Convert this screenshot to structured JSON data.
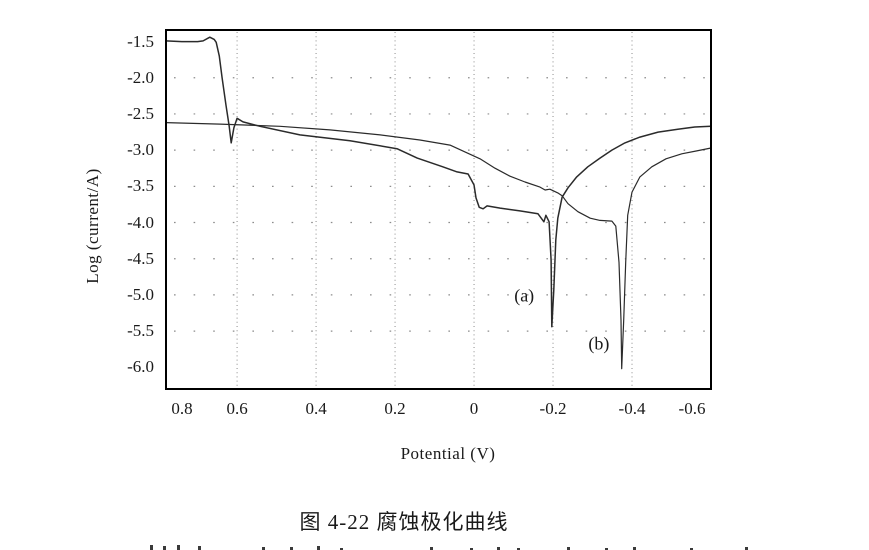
{
  "figure": {
    "caption": "图 4-22  腐蚀极化曲线",
    "cutoff_line_note": "second caption line clipped at bottom edge of screenshot",
    "cutoff_line_marks": [
      [
        150,
        5
      ],
      [
        163,
        4
      ],
      [
        177,
        5
      ],
      [
        198,
        4
      ],
      [
        262,
        3
      ],
      [
        290,
        3
      ],
      [
        317,
        4
      ],
      [
        340,
        2
      ],
      [
        430,
        3
      ],
      [
        470,
        2
      ],
      [
        497,
        3
      ],
      [
        517,
        2
      ],
      [
        567,
        3
      ],
      [
        605,
        2
      ],
      [
        633,
        3
      ],
      [
        690,
        2
      ],
      [
        745,
        3
      ]
    ]
  },
  "chart_data": {
    "type": "line",
    "title": "",
    "xlabel": "Potential (V)",
    "ylabel": "Log (current/A)",
    "x_axis_reversed": true,
    "xlim": [
      0.78,
      -0.6
    ],
    "ylim": [
      -1.34,
      -6.3
    ],
    "x_ticks": [
      0.8,
      0.6,
      0.4,
      0.2,
      0,
      -0.2,
      -0.4,
      -0.6
    ],
    "x_tick_labels": [
      "0.8",
      "0.6",
      "0.4",
      "0.2",
      "0",
      "-0.2",
      "-0.4",
      "-0.6"
    ],
    "y_ticks": [
      -1.5,
      -2.0,
      -2.5,
      -3.0,
      -3.5,
      -4.0,
      -4.5,
      -5.0,
      -5.5,
      -6.0
    ],
    "y_tick_labels": [
      "-1.5",
      "-2.0",
      "-2.5",
      "-3.0",
      "-3.5",
      "-4.0",
      "-4.5",
      "-5.0",
      "-5.5",
      "-6.0"
    ],
    "grid": "dotted",
    "grid_x_values": [
      0.6,
      0.4,
      0.2,
      0,
      -0.2,
      -0.4
    ],
    "grid_y_values": [
      -2.0,
      -2.5,
      -3.0,
      -3.5,
      -4.0,
      -4.5,
      -5.0,
      -5.5
    ],
    "legend_position": "none",
    "series": [
      {
        "name": "(a)",
        "description": "curve with passive plateau at -1.5, activation dip near 0.62 V, current step near 0 V, corrosion potential spike near -0.20 V",
        "points": [
          [
            0.78,
            -1.49
          ],
          [
            0.74,
            -1.5
          ],
          [
            0.7,
            -1.5
          ],
          [
            0.686,
            -1.49
          ],
          [
            0.669,
            -1.44
          ],
          [
            0.658,
            -1.47
          ],
          [
            0.653,
            -1.51
          ],
          [
            0.645,
            -1.7
          ],
          [
            0.638,
            -2.0
          ],
          [
            0.628,
            -2.38
          ],
          [
            0.62,
            -2.67
          ],
          [
            0.615,
            -2.9
          ],
          [
            0.608,
            -2.69
          ],
          [
            0.6,
            -2.56
          ],
          [
            0.585,
            -2.61
          ],
          [
            0.542,
            -2.67
          ],
          [
            0.441,
            -2.79
          ],
          [
            0.314,
            -2.87
          ],
          [
            0.195,
            -2.98
          ],
          [
            0.144,
            -3.11
          ],
          [
            0.079,
            -3.23
          ],
          [
            0.043,
            -3.3
          ],
          [
            0.015,
            -3.33
          ],
          [
            0.0,
            -3.48
          ],
          [
            -0.005,
            -3.66
          ],
          [
            -0.013,
            -3.79
          ],
          [
            -0.023,
            -3.81
          ],
          [
            -0.033,
            -3.77
          ],
          [
            -0.066,
            -3.8
          ],
          [
            -0.116,
            -3.84
          ],
          [
            -0.162,
            -3.88
          ],
          [
            -0.177,
            -3.99
          ],
          [
            -0.182,
            -3.9
          ],
          [
            -0.19,
            -3.99
          ],
          [
            -0.195,
            -4.52
          ],
          [
            -0.197,
            -5.44
          ],
          [
            -0.202,
            -4.93
          ],
          [
            -0.207,
            -4.24
          ],
          [
            -0.212,
            -3.94
          ],
          [
            -0.223,
            -3.65
          ],
          [
            -0.238,
            -3.52
          ],
          [
            -0.26,
            -3.37
          ],
          [
            -0.288,
            -3.23
          ],
          [
            -0.319,
            -3.11
          ],
          [
            -0.349,
            -3.0
          ],
          [
            -0.382,
            -2.9
          ],
          [
            -0.42,
            -2.82
          ],
          [
            -0.466,
            -2.75
          ],
          [
            -0.516,
            -2.71
          ],
          [
            -0.559,
            -2.68
          ],
          [
            -0.6,
            -2.67
          ]
        ]
      },
      {
        "name": "(b)",
        "description": "curve starting near -2.6, gradual decline, corrosion potential spike near -0.37 V",
        "points": [
          [
            0.78,
            -2.62
          ],
          [
            0.643,
            -2.64
          ],
          [
            0.491,
            -2.67
          ],
          [
            0.365,
            -2.72
          ],
          [
            0.238,
            -2.79
          ],
          [
            0.137,
            -2.86
          ],
          [
            0.061,
            -2.93
          ],
          [
            0.021,
            -3.03
          ],
          [
            -0.015,
            -3.12
          ],
          [
            -0.053,
            -3.25
          ],
          [
            -0.091,
            -3.36
          ],
          [
            -0.129,
            -3.44
          ],
          [
            -0.167,
            -3.51
          ],
          [
            -0.18,
            -3.55
          ],
          [
            -0.192,
            -3.54
          ],
          [
            -0.212,
            -3.59
          ],
          [
            -0.223,
            -3.63
          ],
          [
            -0.238,
            -3.74
          ],
          [
            -0.263,
            -3.85
          ],
          [
            -0.294,
            -3.94
          ],
          [
            -0.319,
            -3.97
          ],
          [
            -0.349,
            -3.98
          ],
          [
            -0.359,
            -4.05
          ],
          [
            -0.367,
            -4.55
          ],
          [
            -0.372,
            -5.35
          ],
          [
            -0.374,
            -6.02
          ],
          [
            -0.379,
            -5.35
          ],
          [
            -0.384,
            -4.55
          ],
          [
            -0.389,
            -3.9
          ],
          [
            -0.4,
            -3.58
          ],
          [
            -0.42,
            -3.37
          ],
          [
            -0.45,
            -3.23
          ],
          [
            -0.486,
            -3.12
          ],
          [
            -0.526,
            -3.05
          ],
          [
            -0.564,
            -3.01
          ],
          [
            -0.6,
            -2.97
          ]
        ]
      }
    ],
    "annotations": [
      {
        "text": "(a)",
        "x": -0.127,
        "y": -5.02
      },
      {
        "text": "(b)",
        "x": -0.316,
        "y": -5.68
      }
    ]
  },
  "colors": {
    "background": "#ffffff",
    "axis": "#000000",
    "curve": "#2b2b2b",
    "grid_dot": "#8c8c8c",
    "text": "#1a1a1a"
  }
}
